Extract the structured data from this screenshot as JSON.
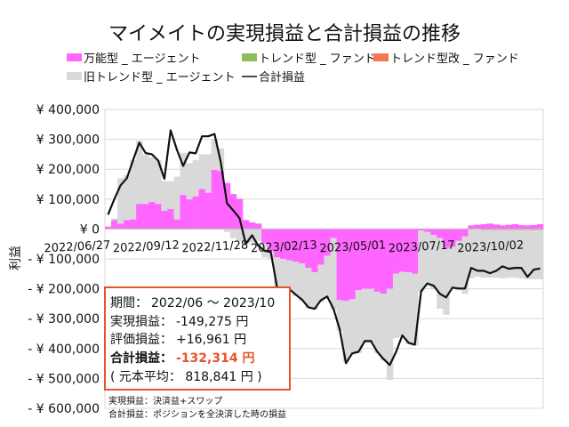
{
  "chart_data": {
    "type": "bar",
    "title": "マイメイトの実現損益と合計損益の推移",
    "ylabel": "利益",
    "ylim": [
      -600000,
      400000
    ],
    "y_ticks": [
      {
        "value": 400000,
        "label": "¥ 400,000"
      },
      {
        "value": 300000,
        "label": "¥ 300,000"
      },
      {
        "value": 200000,
        "label": "¥ 200,000"
      },
      {
        "value": 100000,
        "label": "¥ 100,000"
      },
      {
        "value": 0,
        "label": "¥ 0"
      },
      {
        "value": -100000,
        "label": "- ¥ 100,000"
      },
      {
        "value": -200000,
        "label": "- ¥ 200,000"
      },
      {
        "value": -300000,
        "label": "- ¥ 300,000"
      },
      {
        "value": -400000,
        "label": "- ¥ 400,000"
      },
      {
        "value": -500000,
        "label": "- ¥ 500,000"
      },
      {
        "value": -600000,
        "label": "- ¥ 600,000"
      }
    ],
    "negative_label_color": "#e02020",
    "grid": true,
    "legend_position": "top",
    "x_tick_labels": [
      "2022/06/27",
      "2022/09/12",
      "2022/11/28",
      "2023/02/13",
      "2023/05/01",
      "2023/07/17",
      "2023/10/02"
    ],
    "categories": [
      "2022/06/27",
      "2022/07/04",
      "2022/07/11",
      "2022/07/18",
      "2022/07/25",
      "2022/08/01",
      "2022/08/08",
      "2022/08/15",
      "2022/08/22",
      "2022/08/29",
      "2022/09/05",
      "2022/09/12",
      "2022/09/19",
      "2022/09/26",
      "2022/10/03",
      "2022/10/10",
      "2022/10/17",
      "2022/10/24",
      "2022/10/31",
      "2022/11/07",
      "2022/11/14",
      "2022/11/21",
      "2022/11/28",
      "2022/12/05",
      "2022/12/12",
      "2022/12/19",
      "2022/12/26",
      "2023/01/02",
      "2023/01/09",
      "2023/01/16",
      "2023/01/23",
      "2023/01/30",
      "2023/02/06",
      "2023/02/13",
      "2023/02/20",
      "2023/02/27",
      "2023/03/06",
      "2023/03/13",
      "2023/03/20",
      "2023/03/27",
      "2023/04/03",
      "2023/04/10",
      "2023/04/17",
      "2023/04/24",
      "2023/05/01",
      "2023/05/08",
      "2023/05/15",
      "2023/05/22",
      "2023/05/29",
      "2023/06/05",
      "2023/06/12",
      "2023/06/19",
      "2023/06/26",
      "2023/07/03",
      "2023/07/10",
      "2023/07/17",
      "2023/07/24",
      "2023/07/31",
      "2023/08/07",
      "2023/08/14",
      "2023/08/21",
      "2023/08/28",
      "2023/09/04",
      "2023/09/11",
      "2023/09/18",
      "2023/09/25",
      "2023/10/02",
      "2023/10/09",
      "2023/10/16",
      "2023/10/23"
    ],
    "series": [
      {
        "name": "万能型 _ エージェント",
        "kind": "bar",
        "color": "#ff66ff",
        "values": [
          8000,
          30000,
          18000,
          30000,
          32000,
          84000,
          84000,
          91000,
          84000,
          61000,
          67000,
          32000,
          114000,
          99000,
          109000,
          134000,
          121000,
          198000,
          193000,
          154000,
          117000,
          101000,
          30000,
          22000,
          18000,
          -48000,
          -75000,
          -95000,
          -100000,
          -105000,
          -110000,
          -115000,
          -130000,
          -145000,
          -120000,
          -90000,
          -30000,
          -238000,
          -240000,
          -235000,
          -205000,
          -200000,
          -200000,
          -210000,
          -217000,
          -200000,
          -150000,
          -143000,
          -145000,
          -150000,
          -5000,
          -10000,
          -20000,
          -30000,
          -63000,
          -60000,
          -40000,
          -25000,
          12000,
          14000,
          16000,
          18000,
          15000,
          12000,
          14000,
          16000,
          13000,
          12000,
          13000,
          16000
        ]
      },
      {
        "name": "トレンド型 _ ファンド",
        "kind": "bar",
        "color": "#8fbc5a",
        "values": [
          0,
          0,
          0,
          0,
          0,
          0,
          0,
          0,
          0,
          0,
          0,
          0,
          0,
          0,
          0,
          0,
          0,
          0,
          0,
          0,
          0,
          0,
          0,
          0,
          0,
          0,
          0,
          0,
          0,
          0,
          0,
          0,
          0,
          0,
          0,
          0,
          0,
          0,
          0,
          0,
          0,
          0,
          0,
          0,
          0,
          0,
          0,
          0,
          0,
          0,
          0,
          0,
          0,
          0,
          0,
          0,
          0,
          0,
          0,
          0,
          0,
          0,
          0,
          0,
          0,
          0,
          0,
          0,
          0,
          0
        ]
      },
      {
        "name": "トレンド型改 _ ファンド",
        "kind": "bar",
        "color": "#f4774f",
        "values": [
          0,
          0,
          0,
          0,
          0,
          0,
          0,
          0,
          0,
          0,
          0,
          0,
          0,
          0,
          0,
          0,
          0,
          0,
          0,
          0,
          0,
          0,
          0,
          0,
          0,
          0,
          0,
          0,
          0,
          0,
          0,
          0,
          0,
          0,
          0,
          0,
          0,
          0,
          0,
          0,
          0,
          0,
          0,
          0,
          0,
          0,
          0,
          0,
          0,
          0,
          0,
          0,
          0,
          0,
          0,
          0,
          0,
          0,
          0,
          0,
          -3000,
          -3000,
          -3000,
          -3000,
          -3000,
          -3000,
          -3000,
          -3000,
          -3000,
          -3000
        ]
      },
      {
        "name": "旧トレンド型 _ エージェント",
        "kind": "bar",
        "color": "#d9d9d9",
        "values": [
          0,
          5000,
          152000,
          150000,
          198000,
          211000,
          166000,
          149000,
          146000,
          99000,
          93000,
          143000,
          141000,
          121000,
          121000,
          116000,
          129000,
          102000,
          77000,
          -10000,
          -30000,
          -40000,
          -50000,
          -45000,
          -40000,
          -47000,
          -25000,
          -105000,
          -115000,
          -100000,
          -115000,
          -125000,
          -135000,
          -125000,
          -125000,
          -140000,
          -240000,
          -102000,
          -205000,
          -185000,
          -210000,
          -180000,
          -180000,
          -205000,
          -223000,
          -305000,
          -215000,
          -217000,
          -240000,
          -240000,
          -205000,
          -180000,
          -180000,
          -237000,
          -224000,
          -140000,
          -165000,
          -192000,
          -165000,
          -160000,
          -160000,
          -160000,
          -160000,
          -162000,
          -160000,
          -160000,
          -162000,
          -165000,
          -165000,
          -165000
        ]
      },
      {
        "name": "合計損益",
        "kind": "line",
        "color": "#111111",
        "values": [
          48000,
          100000,
          146000,
          170000,
          230000,
          289000,
          254000,
          250000,
          229000,
          168000,
          330000,
          265000,
          211000,
          256000,
          253000,
          310000,
          310000,
          318000,
          224000,
          86000,
          62000,
          36000,
          -50000,
          -21000,
          -56000,
          -73000,
          -77000,
          -196000,
          -214000,
          -202000,
          -220000,
          -237000,
          -262000,
          -267000,
          -238000,
          -226000,
          -267000,
          -336000,
          -449000,
          -416000,
          -411000,
          -375000,
          -375000,
          -411000,
          -435000,
          -455000,
          -411000,
          -356000,
          -381000,
          -387000,
          -208000,
          -182000,
          -190000,
          -217000,
          -229000,
          -196000,
          -199000,
          -199000,
          -130000,
          -140000,
          -140000,
          -148000,
          -140000,
          -125000,
          -133000,
          -130000,
          -130000,
          -160000,
          -136000,
          -132000
        ]
      }
    ]
  },
  "summary": {
    "period_label": "期間：",
    "period_value": "2022/06 ～ 2023/10",
    "realized_label": "実現損益：",
    "realized_value": "-149,275 円",
    "unrealized_label": "評価損益：",
    "unrealized_value": "+16,961 円",
    "total_label": "合計損益：",
    "total_value": "-132,314 円",
    "principal_text": "( 元本平均： 818,841 円 )",
    "border_color": "#e8542a",
    "total_color": "#e8542a"
  },
  "footnotes": [
    "実現損益：決済益+スワップ",
    "合計損益：ポジションを全決済した時の損益"
  ]
}
